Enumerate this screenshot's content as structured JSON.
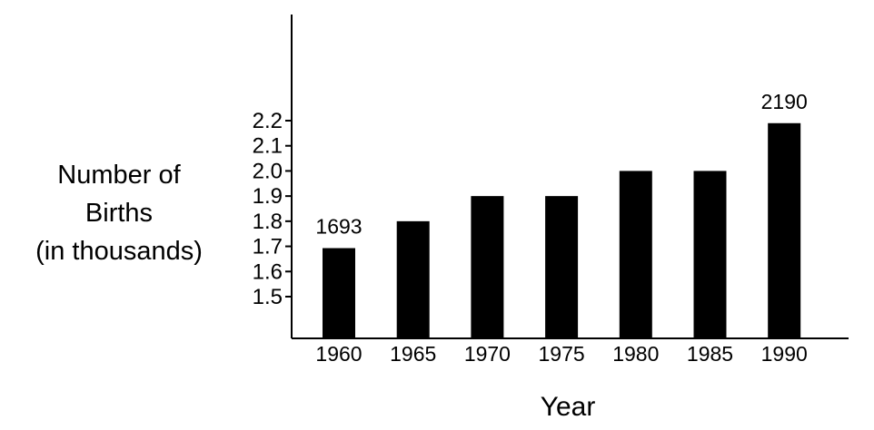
{
  "chart_data": {
    "type": "bar",
    "title": "",
    "xlabel": "Year",
    "ylabel_lines": [
      "Number of",
      "Births",
      "(in thousands)"
    ],
    "categories": [
      "1960",
      "1965",
      "1970",
      "1975",
      "1980",
      "1985",
      "1990"
    ],
    "values": [
      1.693,
      1.8,
      1.9,
      1.9,
      2.0,
      2.0,
      2.19
    ],
    "data_labels": [
      "1693",
      "",
      "",
      "",
      "",
      "",
      "2190"
    ],
    "yticks": [
      "1.5",
      "1.6",
      "1.7",
      "1.8",
      "1.9",
      "2.0",
      "2.1",
      "2.2"
    ],
    "ytick_values": [
      1.5,
      1.6,
      1.7,
      1.8,
      1.9,
      2.0,
      2.1,
      2.2
    ],
    "ylim_visible": [
      1.5,
      2.2
    ],
    "bar_color": "#000000",
    "grid": false
  }
}
